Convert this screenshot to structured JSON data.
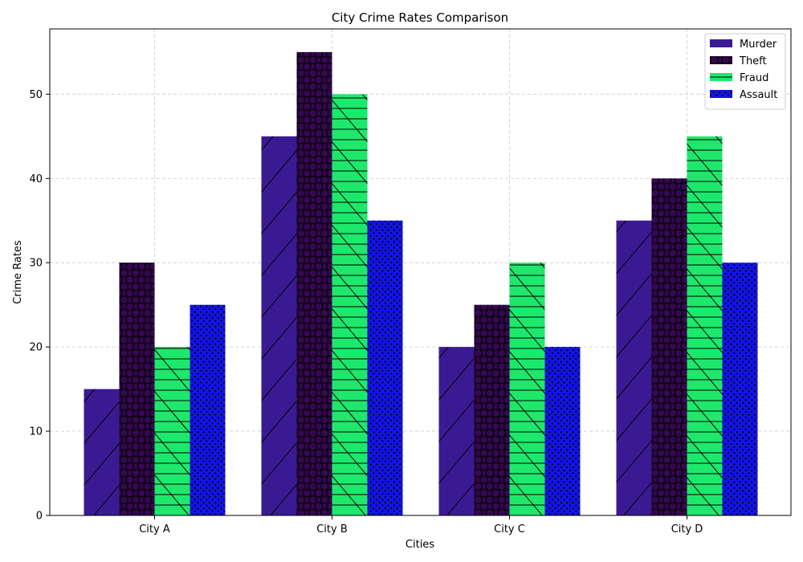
{
  "chart_data": {
    "type": "bar",
    "title": "City Crime Rates Comparison",
    "xlabel": "Cities",
    "ylabel": "Crime Rates",
    "categories": [
      "City A",
      "City B",
      "City C",
      "City D"
    ],
    "ylim": [
      0,
      57.75
    ],
    "yticks": [
      0,
      10,
      20,
      30,
      40,
      50
    ],
    "grid": true,
    "legend_position": "top-right",
    "series": [
      {
        "name": "Murder",
        "values": [
          15,
          45,
          20,
          35
        ],
        "color": "#3a1a93",
        "hatch": "diagonal-forward"
      },
      {
        "name": "Theft",
        "values": [
          30,
          55,
          25,
          40
        ],
        "color": "#360852",
        "hatch": "circles"
      },
      {
        "name": "Fraud",
        "values": [
          20,
          50,
          30,
          45
        ],
        "color": "#1de86c",
        "hatch": "horizontal-backslash"
      },
      {
        "name": "Assault",
        "values": [
          25,
          35,
          20,
          30
        ],
        "color": "#1414e6",
        "hatch": "dots"
      }
    ]
  }
}
